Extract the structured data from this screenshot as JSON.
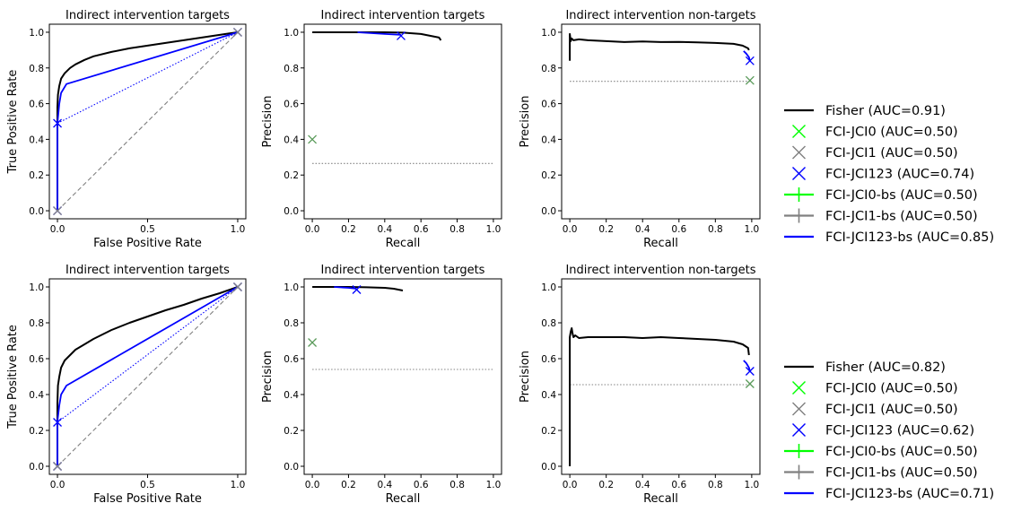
{
  "chart_data": [
    {
      "type": "line",
      "kind": "roc",
      "title": "Indirect intervention targets",
      "xlabel": "False Positive Rate",
      "ylabel": "True Positive Rate",
      "xlim": [
        0,
        1
      ],
      "ylim": [
        0,
        1
      ],
      "xticks": [
        "0.0",
        "0.5",
        "1.0"
      ],
      "yticks": [
        "0.0",
        "0.2",
        "0.4",
        "0.6",
        "0.8",
        "1.0"
      ],
      "series": [
        {
          "name": "Fisher",
          "color": "#000000",
          "style": "solid",
          "x": [
            0,
            0,
            0.003,
            0.01,
            0.02,
            0.04,
            0.07,
            0.1,
            0.15,
            0.2,
            0.3,
            0.4,
            0.5,
            0.6,
            0.7,
            0.8,
            0.9,
            0.95,
            1.0
          ],
          "y": [
            0,
            0.58,
            0.65,
            0.7,
            0.74,
            0.77,
            0.8,
            0.82,
            0.845,
            0.865,
            0.89,
            0.91,
            0.925,
            0.94,
            0.955,
            0.97,
            0.985,
            0.993,
            1.0
          ]
        },
        {
          "name": "FCI-JCI123-bs",
          "color": "#0000ff",
          "style": "solid",
          "x": [
            0,
            0,
            0.01,
            0.02,
            0.05,
            1.0
          ],
          "y": [
            0,
            0.49,
            0.6,
            0.66,
            0.71,
            1.0
          ]
        },
        {
          "name": "FCI-JCI123 interpolation",
          "color": "#0000ff",
          "style": "dotted",
          "x": [
            0,
            1.0
          ],
          "y": [
            0.49,
            1.0
          ]
        },
        {
          "name": "chance",
          "color": "#808080",
          "style": "dashed",
          "x": [
            0,
            1
          ],
          "y": [
            0,
            1
          ]
        }
      ],
      "markers": [
        {
          "name": "FCI-JCI123",
          "symbol": "x",
          "color": "#0000ff",
          "x": 0,
          "y": 0
        },
        {
          "name": "FCI-JCI123",
          "symbol": "x",
          "color": "#0000ff",
          "x": 0,
          "y": 0.49
        },
        {
          "name": "FCI-JCI123",
          "symbol": "x",
          "color": "#0000ff",
          "x": 1,
          "y": 1
        },
        {
          "name": "FCI-JCI1",
          "symbol": "x",
          "color": "#808080",
          "x": 0,
          "y": 0
        },
        {
          "name": "FCI-JCI1",
          "symbol": "x",
          "color": "#808080",
          "x": 1,
          "y": 1
        }
      ]
    },
    {
      "type": "line",
      "kind": "pr",
      "title": "Indirect intervention targets",
      "xlabel": "Recall",
      "ylabel": "Precision",
      "xlim": [
        0,
        1
      ],
      "ylim": [
        0,
        1
      ],
      "xticks": [
        "0.0",
        "0.2",
        "0.4",
        "0.6",
        "0.8",
        "1.0"
      ],
      "yticks": [
        "0.0",
        "0.2",
        "0.4",
        "0.6",
        "0.8",
        "1.0"
      ],
      "series": [
        {
          "name": "Fisher",
          "color": "#000000",
          "style": "solid",
          "x": [
            0,
            0.1,
            0.2,
            0.3,
            0.4,
            0.5,
            0.6,
            0.65,
            0.7,
            0.71
          ],
          "y": [
            1.0,
            1.0,
            1.0,
            1.0,
            1.0,
            0.998,
            0.99,
            0.98,
            0.97,
            0.955
          ]
        },
        {
          "name": "FCI-JCI123-bs",
          "color": "#0000ff",
          "style": "solid",
          "x": [
            0.25,
            0.4,
            0.49
          ],
          "y": [
            1.0,
            0.99,
            0.985
          ]
        },
        {
          "name": "baseline",
          "color": "#808080",
          "style": "dotted",
          "x": [
            0,
            1
          ],
          "y": [
            0.265,
            0.265
          ]
        }
      ],
      "markers": [
        {
          "name": "FCI-JCI123",
          "symbol": "x",
          "color": "#0000ff",
          "x": 0.49,
          "y": 0.98
        },
        {
          "name": "FCI-JCI1",
          "symbol": "x",
          "color": "#5a9a5a",
          "x": 0,
          "y": 0.4
        }
      ]
    },
    {
      "type": "line",
      "kind": "pr",
      "title": "Indirect intervention non-targets",
      "xlabel": "Recall",
      "ylabel": "Precision",
      "xlim": [
        0,
        1
      ],
      "ylim": [
        0,
        1
      ],
      "xticks": [
        "0.0",
        "0.2",
        "0.4",
        "0.6",
        "0.8",
        "1.0"
      ],
      "yticks": [
        "0.0",
        "0.2",
        "0.4",
        "0.6",
        "0.8",
        "1.0"
      ],
      "series": [
        {
          "name": "Fisher",
          "color": "#000000",
          "style": "solid",
          "x": [
            0,
            0,
            0.005,
            0.01,
            0.02,
            0.05,
            0.1,
            0.2,
            0.3,
            0.4,
            0.5,
            0.6,
            0.7,
            0.8,
            0.9,
            0.95,
            0.98,
            0.985
          ],
          "y": [
            0.84,
            0.99,
            0.95,
            0.965,
            0.955,
            0.96,
            0.955,
            0.95,
            0.945,
            0.948,
            0.945,
            0.946,
            0.943,
            0.94,
            0.935,
            0.925,
            0.91,
            0.9
          ]
        },
        {
          "name": "FCI-JCI123-bs",
          "color": "#0000ff",
          "style": "solid",
          "x": [
            0.955,
            0.97,
            0.985,
            0.99
          ],
          "y": [
            0.895,
            0.88,
            0.86,
            0.84
          ]
        },
        {
          "name": "baseline",
          "color": "#808080",
          "style": "dotted",
          "x": [
            0,
            1
          ],
          "y": [
            0.725,
            0.725
          ]
        }
      ],
      "markers": [
        {
          "name": "FCI-JCI123",
          "symbol": "x",
          "color": "#0000ff",
          "x": 0.99,
          "y": 0.84
        },
        {
          "name": "FCI-JCI1",
          "symbol": "x",
          "color": "#5a9a5a",
          "x": 0.99,
          "y": 0.73
        }
      ]
    },
    {
      "type": "line",
      "kind": "roc",
      "title": "Indirect intervention targets",
      "xlabel": "False Positive Rate",
      "ylabel": "True Positive Rate",
      "xlim": [
        0,
        1
      ],
      "ylim": [
        0,
        1
      ],
      "xticks": [
        "0.0",
        "0.5",
        "1.0"
      ],
      "yticks": [
        "0.0",
        "0.2",
        "0.4",
        "0.6",
        "0.8",
        "1.0"
      ],
      "series": [
        {
          "name": "Fisher",
          "color": "#000000",
          "style": "solid",
          "x": [
            0,
            0,
            0.003,
            0.01,
            0.02,
            0.04,
            0.07,
            0.1,
            0.15,
            0.2,
            0.3,
            0.4,
            0.5,
            0.6,
            0.7,
            0.8,
            0.9,
            1.0
          ],
          "y": [
            0,
            0.35,
            0.45,
            0.5,
            0.55,
            0.59,
            0.62,
            0.65,
            0.68,
            0.71,
            0.76,
            0.8,
            0.835,
            0.87,
            0.9,
            0.935,
            0.965,
            1.0
          ]
        },
        {
          "name": "FCI-JCI123-bs",
          "color": "#0000ff",
          "style": "solid",
          "x": [
            0,
            0,
            0.01,
            0.02,
            0.05,
            1.0
          ],
          "y": [
            0,
            0.25,
            0.34,
            0.4,
            0.45,
            1.0
          ]
        },
        {
          "name": "FCI-JCI123 interpolation",
          "color": "#0000ff",
          "style": "dotted",
          "x": [
            0,
            1.0
          ],
          "y": [
            0.245,
            1.0
          ]
        },
        {
          "name": "chance",
          "color": "#808080",
          "style": "dashed",
          "x": [
            0,
            1
          ],
          "y": [
            0,
            1
          ]
        }
      ],
      "markers": [
        {
          "name": "FCI-JCI123",
          "symbol": "x",
          "color": "#0000ff",
          "x": 0,
          "y": 0
        },
        {
          "name": "FCI-JCI123",
          "symbol": "x",
          "color": "#0000ff",
          "x": 0,
          "y": 0.245
        },
        {
          "name": "FCI-JCI123",
          "symbol": "x",
          "color": "#0000ff",
          "x": 1,
          "y": 1
        },
        {
          "name": "FCI-JCI1",
          "symbol": "x",
          "color": "#808080",
          "x": 0,
          "y": 0
        },
        {
          "name": "FCI-JCI1",
          "symbol": "x",
          "color": "#808080",
          "x": 1,
          "y": 1
        }
      ]
    },
    {
      "type": "line",
      "kind": "pr",
      "title": "Indirect intervention targets",
      "xlabel": "Recall",
      "ylabel": "Precision",
      "xlim": [
        0,
        1
      ],
      "ylim": [
        0,
        1
      ],
      "xticks": [
        "0.0",
        "0.2",
        "0.4",
        "0.6",
        "0.8",
        "1.0"
      ],
      "yticks": [
        "0.0",
        "0.2",
        "0.4",
        "0.6",
        "0.8",
        "1.0"
      ],
      "series": [
        {
          "name": "Fisher",
          "color": "#000000",
          "style": "solid",
          "x": [
            0,
            0.1,
            0.2,
            0.3,
            0.4,
            0.45,
            0.5
          ],
          "y": [
            1.0,
            1.0,
            1.0,
            0.998,
            0.995,
            0.99,
            0.98
          ]
        },
        {
          "name": "FCI-JCI123-bs",
          "color": "#0000ff",
          "style": "solid",
          "x": [
            0.12,
            0.2,
            0.245
          ],
          "y": [
            1.0,
            0.995,
            0.99
          ]
        },
        {
          "name": "baseline",
          "color": "#808080",
          "style": "dotted",
          "x": [
            0,
            1
          ],
          "y": [
            0.54,
            0.54
          ]
        }
      ],
      "markers": [
        {
          "name": "FCI-JCI123",
          "symbol": "x",
          "color": "#0000ff",
          "x": 0.245,
          "y": 0.985
        },
        {
          "name": "FCI-JCI1",
          "symbol": "x",
          "color": "#5a9a5a",
          "x": 0,
          "y": 0.69
        }
      ]
    },
    {
      "type": "line",
      "kind": "pr",
      "title": "Indirect intervention non-targets",
      "xlabel": "Recall",
      "ylabel": "Precision",
      "xlim": [
        0,
        1
      ],
      "ylim": [
        0,
        1
      ],
      "xticks": [
        "0.0",
        "0.2",
        "0.4",
        "0.6",
        "0.8",
        "1.0"
      ],
      "yticks": [
        "0.0",
        "0.2",
        "0.4",
        "0.6",
        "0.8",
        "1.0"
      ],
      "series": [
        {
          "name": "Fisher",
          "color": "#000000",
          "style": "solid",
          "x": [
            0,
            0,
            0.005,
            0.01,
            0.015,
            0.02,
            0.03,
            0.05,
            0.1,
            0.2,
            0.3,
            0.4,
            0.5,
            0.6,
            0.7,
            0.8,
            0.9,
            0.95,
            0.98,
            0.985
          ],
          "y": [
            0,
            0.72,
            0.75,
            0.77,
            0.74,
            0.72,
            0.73,
            0.715,
            0.72,
            0.72,
            0.72,
            0.715,
            0.72,
            0.715,
            0.71,
            0.705,
            0.695,
            0.68,
            0.66,
            0.62
          ]
        },
        {
          "name": "FCI-JCI123-bs",
          "color": "#0000ff",
          "style": "solid",
          "x": [
            0.955,
            0.97,
            0.985,
            0.99
          ],
          "y": [
            0.59,
            0.575,
            0.55,
            0.53
          ]
        },
        {
          "name": "baseline",
          "color": "#808080",
          "style": "dotted",
          "x": [
            0,
            1
          ],
          "y": [
            0.455,
            0.455
          ]
        }
      ],
      "markers": [
        {
          "name": "FCI-JCI123",
          "symbol": "x",
          "color": "#0000ff",
          "x": 0.99,
          "y": 0.53
        },
        {
          "name": "FCI-JCI1",
          "symbol": "x",
          "color": "#5a9a5a",
          "x": 0.99,
          "y": 0.46
        }
      ]
    }
  ],
  "legends": [
    {
      "entries": [
        {
          "label": "Fisher (AUC=0.91)",
          "color": "#000000",
          "symbol": "line"
        },
        {
          "label": "FCI-JCI0 (AUC=0.50)",
          "color": "#00ff00",
          "symbol": "x"
        },
        {
          "label": "FCI-JCI1 (AUC=0.50)",
          "color": "#808080",
          "symbol": "x"
        },
        {
          "label": "FCI-JCI123 (AUC=0.74)",
          "color": "#0000ff",
          "symbol": "x"
        },
        {
          "label": "FCI-JCI0-bs (AUC=0.50)",
          "color": "#00ff00",
          "symbol": "plus-line"
        },
        {
          "label": "FCI-JCI1-bs (AUC=0.50)",
          "color": "#808080",
          "symbol": "plus-line"
        },
        {
          "label": "FCI-JCI123-bs (AUC=0.85)",
          "color": "#0000ff",
          "symbol": "line"
        }
      ]
    },
    {
      "entries": [
        {
          "label": "Fisher (AUC=0.82)",
          "color": "#000000",
          "symbol": "line"
        },
        {
          "label": "FCI-JCI0 (AUC=0.50)",
          "color": "#00ff00",
          "symbol": "x"
        },
        {
          "label": "FCI-JCI1 (AUC=0.50)",
          "color": "#808080",
          "symbol": "x"
        },
        {
          "label": "FCI-JCI123 (AUC=0.62)",
          "color": "#0000ff",
          "symbol": "x"
        },
        {
          "label": "FCI-JCI0-bs (AUC=0.50)",
          "color": "#00ff00",
          "symbol": "plus-line"
        },
        {
          "label": "FCI-JCI1-bs (AUC=0.50)",
          "color": "#808080",
          "symbol": "plus-line"
        },
        {
          "label": "FCI-JCI123-bs (AUC=0.71)",
          "color": "#0000ff",
          "symbol": "line"
        }
      ]
    }
  ]
}
